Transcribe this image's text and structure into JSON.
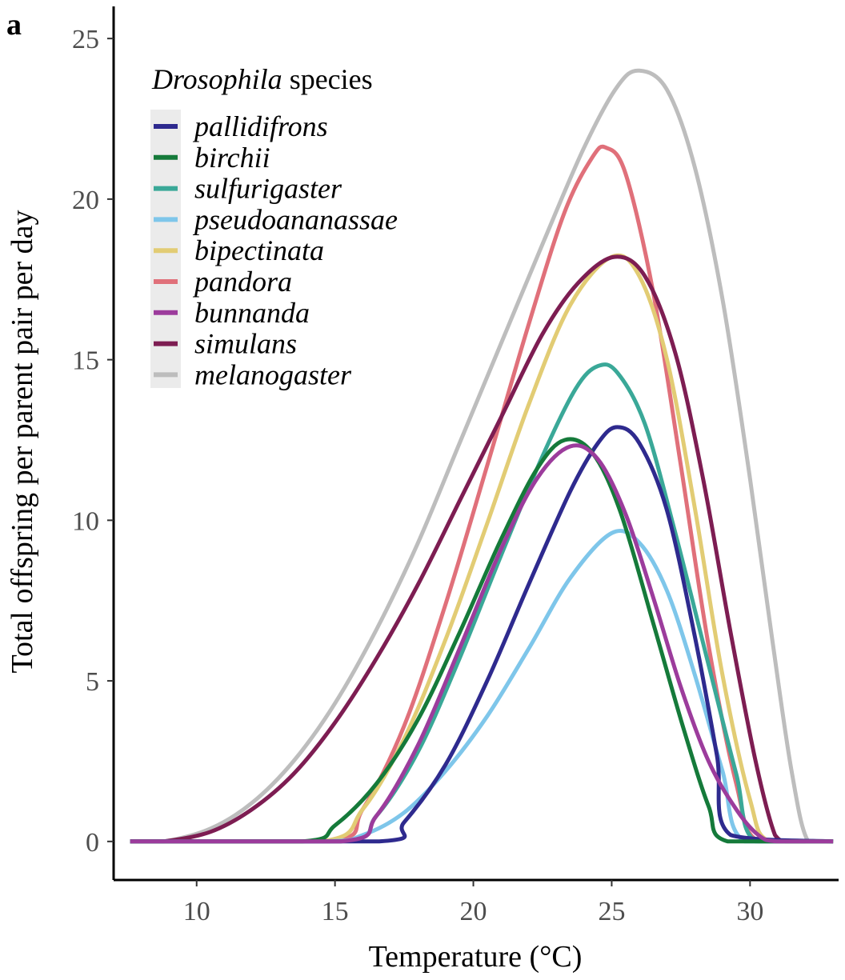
{
  "panel_label": "a",
  "chart_data": {
    "type": "line",
    "title": "",
    "xlabel": "Temperature (°C)",
    "ylabel": "Total offspring per parent pair per day",
    "xlim": [
      7,
      33.2
    ],
    "ylim": [
      -1.2,
      26
    ],
    "xticks": [
      10,
      15,
      20,
      25,
      30
    ],
    "yticks": [
      0,
      5,
      10,
      15,
      20,
      25
    ],
    "grid": false,
    "legend": {
      "title_italic": "Drosophila",
      "title_rest": " species",
      "placement": "top-left"
    },
    "series": [
      {
        "name": "pallidifrons",
        "color": "#2e2a8e",
        "x": [
          7.6,
          16.6,
          17.5,
          19.0,
          20.5,
          22.0,
          23.5,
          24.5,
          25.2,
          26.0,
          27.0,
          28.0,
          28.8,
          29.3,
          33.0
        ],
        "y": [
          0,
          0,
          0.6,
          2.4,
          5.0,
          8.0,
          10.9,
          12.4,
          12.9,
          12.4,
          10.3,
          6.4,
          2.7,
          0.2,
          0
        ]
      },
      {
        "name": "birchii",
        "color": "#157a3a",
        "x": [
          7.6,
          13.8,
          15.0,
          16.5,
          18.0,
          19.5,
          21.0,
          22.3,
          23.3,
          24.3,
          25.3,
          26.5,
          27.6,
          28.5,
          29.2,
          33.0
        ],
        "y": [
          0,
          0,
          0.5,
          1.8,
          3.8,
          6.5,
          9.4,
          11.6,
          12.5,
          12.1,
          10.3,
          6.8,
          3.5,
          1.1,
          0,
          0
        ]
      },
      {
        "name": "sulfurigaster",
        "color": "#3aa898",
        "x": [
          7.6,
          15.2,
          16.5,
          18.0,
          19.5,
          21.0,
          22.5,
          23.7,
          24.5,
          25.2,
          26.2,
          27.3,
          28.5,
          29.5,
          30.2,
          33.0
        ],
        "y": [
          0,
          0,
          0.8,
          2.8,
          5.7,
          8.9,
          12.0,
          14.1,
          14.8,
          14.6,
          13.0,
          9.6,
          5.5,
          2.1,
          0,
          0
        ]
      },
      {
        "name": "pseudoananassae",
        "color": "#7ec6ea",
        "x": [
          7.6,
          14.5,
          16.0,
          17.5,
          19.0,
          20.5,
          22.0,
          23.5,
          25.0,
          26.0,
          27.0,
          28.0,
          29.0,
          29.8,
          33.0
        ],
        "y": [
          0,
          0,
          0.2,
          0.9,
          2.2,
          3.9,
          6.0,
          8.2,
          9.6,
          9.3,
          7.8,
          5.2,
          2.2,
          0,
          0
        ]
      },
      {
        "name": "bipectinata",
        "color": "#e2cc74",
        "x": [
          7.6,
          14.5,
          16.0,
          17.5,
          19.0,
          20.5,
          22.0,
          23.5,
          25.0,
          26.0,
          27.0,
          28.0,
          29.0,
          30.0,
          30.7,
          33.0
        ],
        "y": [
          0,
          0,
          1.0,
          3.2,
          6.3,
          9.9,
          13.6,
          16.7,
          18.2,
          17.6,
          15.0,
          10.4,
          5.2,
          1.3,
          0,
          0
        ]
      },
      {
        "name": "pandora",
        "color": "#e0707a",
        "x": [
          7.6,
          14.8,
          16.0,
          17.5,
          19.0,
          20.5,
          22.0,
          23.3,
          24.3,
          24.8,
          25.5,
          26.5,
          27.5,
          28.5,
          29.5,
          30.3,
          33.0
        ],
        "y": [
          0,
          0,
          1.0,
          3.6,
          7.4,
          11.7,
          16.1,
          19.6,
          21.3,
          21.6,
          20.8,
          17.1,
          11.7,
          6.1,
          1.8,
          0,
          0
        ]
      },
      {
        "name": "bunnanda",
        "color": "#9c3c9c",
        "x": [
          7.6,
          15.2,
          16.5,
          18.0,
          19.5,
          21.0,
          22.3,
          23.5,
          24.5,
          25.5,
          26.5,
          27.5,
          28.5,
          29.5,
          30.3,
          31.0,
          33.0
        ],
        "y": [
          0,
          0,
          0.8,
          3.0,
          6.0,
          9.1,
          11.3,
          12.3,
          11.9,
          10.2,
          7.6,
          4.8,
          2.5,
          1.0,
          0.2,
          0,
          0
        ]
      },
      {
        "name": "simulans",
        "color": "#7d1d52",
        "x": [
          7.6,
          8.8,
          10.5,
          12.0,
          13.5,
          15.0,
          16.5,
          18.0,
          19.5,
          21.0,
          22.5,
          23.8,
          25.1,
          26.2,
          27.3,
          28.3,
          29.3,
          30.2,
          30.9,
          31.3,
          32.0
        ],
        "y": [
          0,
          0,
          0.3,
          1.0,
          2.1,
          3.7,
          5.7,
          8.0,
          10.6,
          13.2,
          15.8,
          17.4,
          18.2,
          17.6,
          15.2,
          11.3,
          6.5,
          2.5,
          0.2,
          0,
          0
        ]
      },
      {
        "name": "melanogaster",
        "color": "#bdbdbd",
        "x": [
          7.6,
          8.8,
          10.5,
          12.0,
          13.5,
          15.0,
          16.5,
          18.0,
          19.5,
          21.0,
          22.5,
          24.0,
          25.2,
          26.0,
          27.0,
          28.0,
          29.0,
          30.0,
          30.8,
          31.5,
          32.1,
          33.0
        ],
        "y": [
          0,
          0,
          0.4,
          1.2,
          2.5,
          4.3,
          6.6,
          9.3,
          12.4,
          15.5,
          18.6,
          21.6,
          23.5,
          24.0,
          23.4,
          21.0,
          16.9,
          11.3,
          6.3,
          2.2,
          0,
          0
        ]
      }
    ]
  }
}
